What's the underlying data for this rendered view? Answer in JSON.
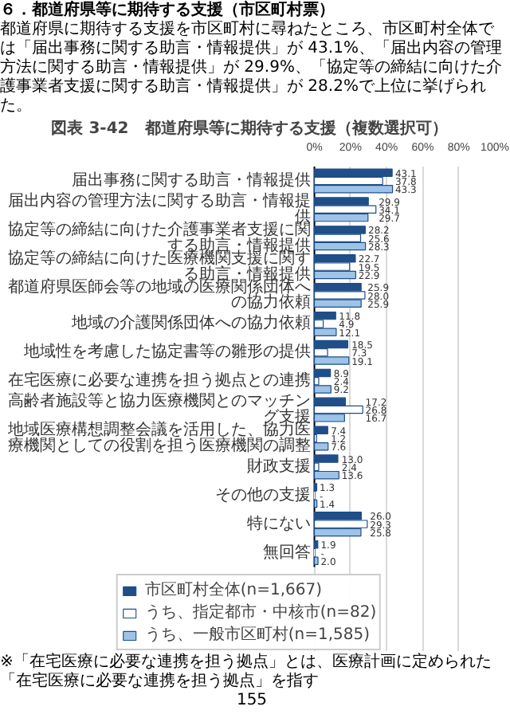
{
  "chart_data": {
    "type": "bar",
    "orientation": "horizontal",
    "title": "図表 3-42　都道府県等に期待する支援（複数選択可）",
    "annotations": [
      "６．都道府県等に期待する支援（市区町村票）",
      "都道府県に期待する支援を市区町村に尋ねたところ、市区町村全体では「届出事務に関する助言・情報提供」が 43.1%、「届出内容の管理方法に関する助言・情報提供」が 29.9%、「協定等の締結に向けた介護事業者支援に関する助言・情報提供」が 28.2%で上位に挙げられた。",
      "※「在宅医療に必要な連携を担う拠点」とは、医療計画に定められた「在宅医療に必要な連携を担う拠点」を指す",
      "155"
    ],
    "categories": [
      "届出事務に関する助言・情報提供",
      "届出内容の管理方法に関する助言・情報提供",
      "協定等の締結に向けた介護事業者支援に関する助言・情報提供",
      "協定等の締結に向けた医療機関支援に関する助言・情報提供",
      "都道府県医師会等の地域の医療関係団体への協力依頼",
      "地域の介護関係団体への協力依頼",
      "地域性を考慮した協定書等の雛形の提供",
      "在宅医療に必要な連携を担う拠点との連携",
      "高齢者施設等と協力医療機関とのマッチング支援",
      "地域医療構想調整会議を活用した、協力医療機関としての役割を担う医療機関の調整",
      "財政支援",
      "その他の支援",
      "特にない",
      "無回答"
    ],
    "series": [
      {
        "name": "市区町村全体(n=1,667)",
        "color": "#1f4e89",
        "values": [
          43.1,
          29.9,
          28.2,
          22.7,
          25.9,
          11.8,
          18.5,
          8.9,
          17.2,
          7.4,
          13.0,
          1.3,
          26.0,
          1.9
        ],
        "value_labels": [
          "43.1",
          "29.9",
          "28.2",
          "22.7",
          "25.9",
          "11.8",
          "18.5",
          "8.9",
          "17.2",
          "7.4",
          "13.0",
          "1.3",
          "26.0",
          "1.9"
        ]
      },
      {
        "name": "うち、指定都市・中核市(n=82)",
        "color": "#ffffff",
        "values": [
          37.8,
          34.1,
          25.6,
          19.5,
          28.0,
          4.9,
          7.3,
          2.4,
          26.8,
          1.2,
          2.4,
          0,
          29.3,
          0
        ],
        "value_labels": [
          "37.8",
          "34.1",
          "25.6",
          "19.5",
          "28.0",
          "4.9",
          "7.3",
          "2.4",
          "26.8",
          "1.2",
          "2.4",
          "-",
          "29.3",
          "-"
        ]
      },
      {
        "name": "うち、一般市区町村(n=1,585)",
        "color": "#9dc3e6",
        "values": [
          43.3,
          29.7,
          28.3,
          22.9,
          25.9,
          12.1,
          19.1,
          9.2,
          16.7,
          7.6,
          13.6,
          1.4,
          25.8,
          2.0
        ],
        "value_labels": [
          "43.3",
          "29.7",
          "28.3",
          "22.9",
          "25.9",
          "12.1",
          "19.1",
          "9.2",
          "16.7",
          "7.6",
          "13.6",
          "1.4",
          "25.8",
          "2.0"
        ]
      }
    ],
    "xlim": [
      0,
      100
    ],
    "xticks": [
      {
        "value": 0,
        "label": "0%"
      },
      {
        "value": 20,
        "label": "20%"
      },
      {
        "value": 40,
        "label": "40%"
      },
      {
        "value": 60,
        "label": "60%"
      },
      {
        "value": 80,
        "label": "80%"
      },
      {
        "value": 100,
        "label": "100%"
      }
    ],
    "grid": "x",
    "legend": "bottom"
  }
}
